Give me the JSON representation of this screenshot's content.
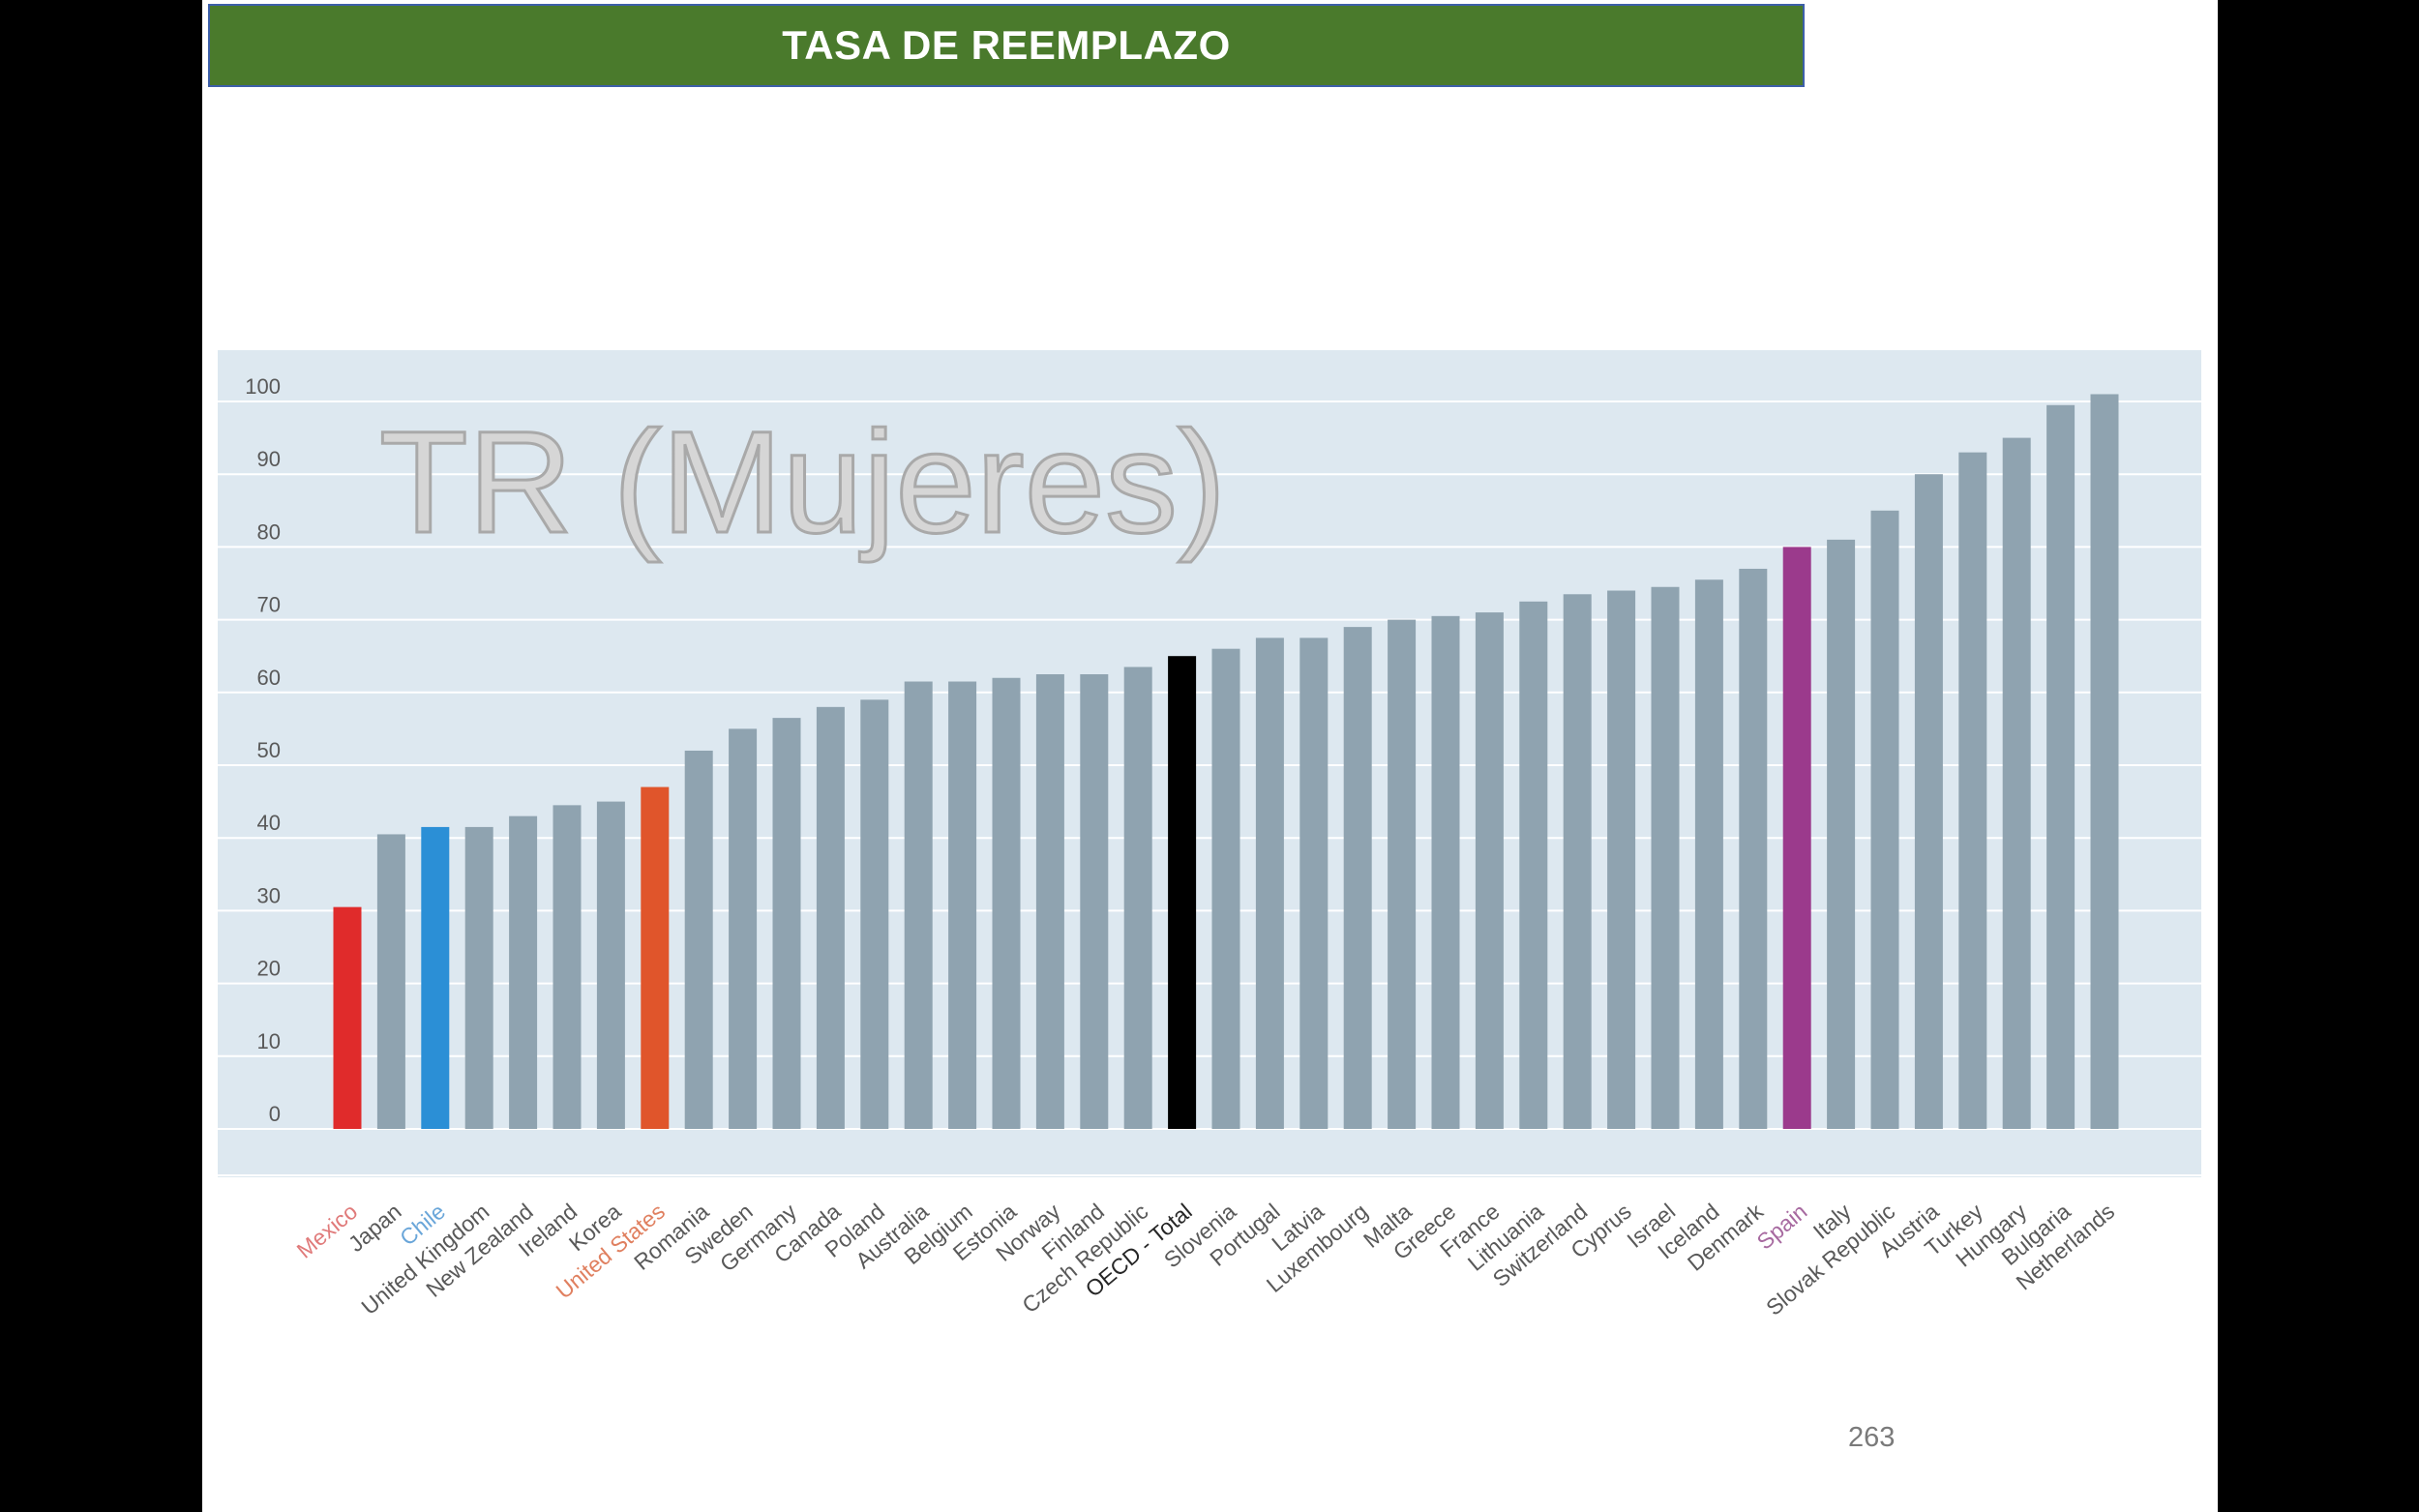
{
  "slide": {
    "title": "TASA DE REEMPLAZO",
    "page_number": "263"
  },
  "chart_data": {
    "type": "bar",
    "title": "TR (Mujeres)",
    "xlabel": "",
    "ylabel": "",
    "ylim": [
      0,
      100
    ],
    "yticks": [
      0,
      10,
      20,
      30,
      40,
      50,
      60,
      70,
      80,
      90,
      100
    ],
    "grid": true,
    "legend": "none",
    "categories": [
      "Mexico",
      "Japan",
      "Chile",
      "United Kingdom",
      "New Zealand",
      "Ireland",
      "Korea",
      "United States",
      "Romania",
      "Sweden",
      "Germany",
      "Canada",
      "Poland",
      "Australia",
      "Belgium",
      "Estonia",
      "Norway",
      "Finland",
      "Czech Republic",
      "OECD - Total",
      "Slovenia",
      "Portugal",
      "Latvia",
      "Luxembourg",
      "Malta",
      "Greece",
      "France",
      "Lithuania",
      "Switzerland",
      "Cyprus",
      "Israel",
      "Iceland",
      "Denmark",
      "Spain",
      "Italy",
      "Slovak Republic",
      "Austria",
      "Turkey",
      "Hungary",
      "Bulgaria",
      "Netherlands"
    ],
    "values": [
      30.5,
      40.5,
      41.5,
      41.5,
      43,
      44.5,
      45,
      47,
      52,
      55,
      56.5,
      58,
      59,
      61.5,
      61.5,
      62,
      62.5,
      62.5,
      63.5,
      65,
      66,
      67.5,
      67.5,
      69,
      70,
      70.5,
      71,
      72.5,
      73.5,
      74,
      74.5,
      75.5,
      77,
      80,
      81,
      85,
      90,
      93,
      95,
      99.5,
      101
    ],
    "colors": {
      "default": "#8fa3b0",
      "Mexico": "#e02b2b",
      "Chile": "#2b8fd6",
      "United States": "#e0552b",
      "OECD - Total": "#000000",
      "Spain": "#9b3a8c"
    },
    "label_colors": {
      "default": "#595959",
      "Mexico": "#e07a7a",
      "Chile": "#6aa6d9",
      "United States": "#e08060",
      "OECD - Total": "#262626",
      "Spain": "#a76aa0"
    },
    "plot_background": "#dde8f0",
    "gridline_color": "#ffffff"
  }
}
